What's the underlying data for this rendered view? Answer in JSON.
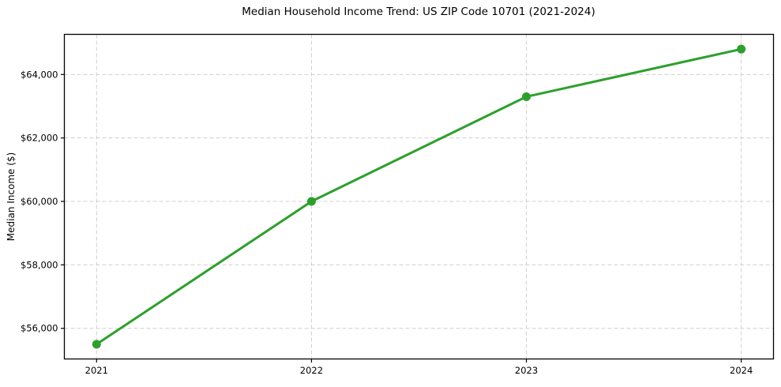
{
  "chart_data": {
    "type": "line",
    "title": "Median Household Income Trend: US ZIP Code 10701 (2021-2024)",
    "xlabel": "",
    "ylabel": "Median Income ($)",
    "x": [
      2021,
      2022,
      2023,
      2024
    ],
    "x_tick_labels": [
      "2021",
      "2022",
      "2023",
      "2024"
    ],
    "series": [
      {
        "name": "Median Household Income",
        "values": [
          55500,
          60000,
          63300,
          64800
        ],
        "color": "#2ca02c"
      }
    ],
    "y_ticks": [
      56000,
      58000,
      60000,
      62000,
      64000
    ],
    "y_tick_labels": [
      "$56,000",
      "$58,000",
      "$60,000",
      "$62,000",
      "$64,000"
    ],
    "xlim": [
      2020.85,
      2024.15
    ],
    "ylim": [
      55035,
      65265
    ],
    "grid": true,
    "grid_style": "dashed",
    "grid_color": "#cfcfcf",
    "axis_color": "#000000",
    "text_color": "#000000",
    "legend": "none",
    "line_width": 3,
    "marker_size": 11
  }
}
